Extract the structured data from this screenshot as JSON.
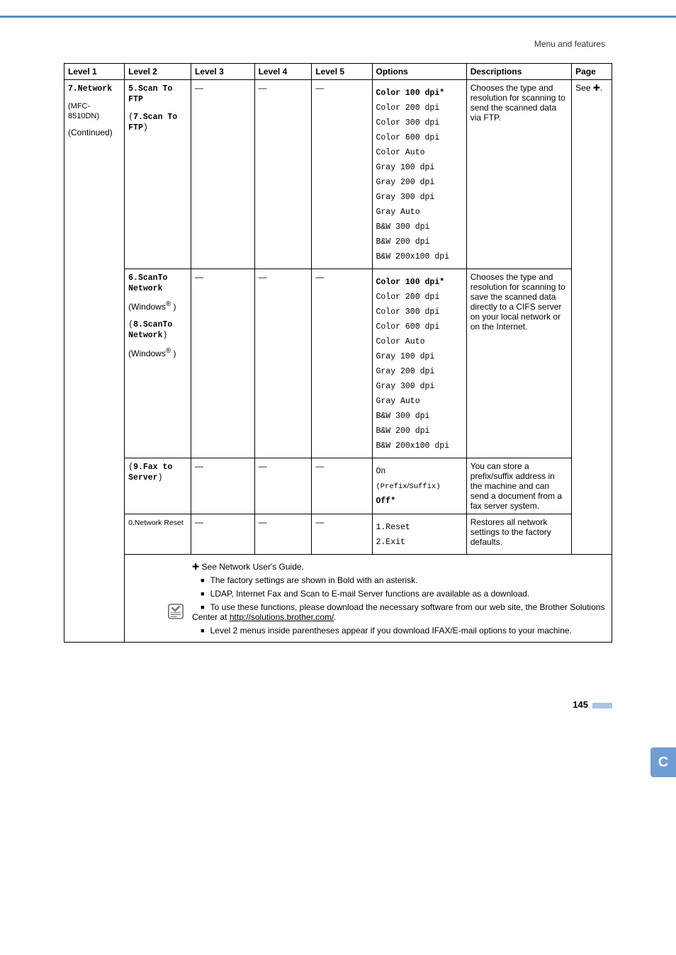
{
  "crumb": "Menu and features",
  "table": {
    "headers": [
      "Level 1",
      "Level 2",
      "Level 3",
      "Level 4",
      "Level 5",
      "Options",
      "Descriptions",
      "Page"
    ],
    "l1": {
      "code": "7.Network",
      "model": "(MFC-8510DN)",
      "cont": "(Continued)"
    },
    "page_ref": "See ✚.",
    "rows": [
      {
        "l2_html": "<div class='l2-block'><span class='l2-code'>5.Scan To FTP</span></div><div class='l2-block'><span class='l2-paren'>(</span><span class='l2-code'>7.Scan To FTP</span><span class='l2-paren'>)</span></div>",
        "l3": "—",
        "l4": "—",
        "l5": "—",
        "options": [
          "Color 100 dpi*",
          "Color 200 dpi",
          "Color 300 dpi",
          "Color 600 dpi",
          "Color Auto",
          "Gray 100 dpi",
          "Gray 200 dpi",
          "Gray 300 dpi",
          "Gray Auto",
          "B&W 300 dpi",
          "B&W 200 dpi",
          "B&W 200x100 dpi"
        ],
        "first_bold": true,
        "desc": "Chooses the type and resolution for scanning to send the scanned data via FTP."
      },
      {
        "l2_html": "<div class='l2-block'><span class='l2-code'>6.ScanTo Network</span></div><div class='l2-block'><span class='l2-sans'>(Windows<sup>®</sup> )</span></div><div class='l2-block'><span class='l2-paren'>(</span><span class='l2-code'>8.ScanTo Network</span><span class='l2-paren'>)</span></div><div class='l2-block'><span class='l2-sans'>(Windows<sup>®</sup> )</span></div>",
        "l3": "—",
        "l4": "—",
        "l5": "—",
        "options": [
          "Color 100 dpi*",
          "Color 200 dpi",
          "Color 300 dpi",
          "Color 600 dpi",
          "Color Auto",
          "Gray 100 dpi",
          "Gray 200 dpi",
          "Gray 300 dpi",
          "Gray Auto",
          "B&W 300 dpi",
          "B&W 200 dpi",
          "B&W 200x100 dpi"
        ],
        "first_bold": true,
        "desc": "Chooses the type and resolution for scanning to save the scanned data directly to a CIFS server on your local network or on the Internet."
      },
      {
        "l2_html": "<div class='l2-block'><span class='l2-paren'>(</span><span class='l2-code'>9.Fax to Server</span><span class='l2-paren'>)</span></div>",
        "l3": "—",
        "l4": "—",
        "l5": "—",
        "options_html": "<div class='opt'><span class='mono'>On</span></div><div class='opt'><span class='mono' style='font-size:10.5px'>(Prefix</span><span style='font-size:10.5px'>/</span><span class='mono' style='font-size:10.5px'>Suffix)</span></div><div class='opt'><span class='mono' style='font-weight:bold'>Off*</span></div>",
        "desc": "You can store a prefix/suffix address in the machine and can send a document from a fax server system."
      },
      {
        "l2_html": "<span class='l2-tiny'>0.Network Reset</span>",
        "l3": "—",
        "l4": "—",
        "l5": "—",
        "options_html": "<div class='opt'><span class='mono'>1.Reset</span></div><div class='opt'><span class='mono'>2.Exit</span></div>",
        "desc": "Restores all network settings to the factory defaults."
      }
    ],
    "footnotes": {
      "lead": "✚ See Network User's Guide.",
      "items": [
        "The factory settings are shown in Bold with an asterisk.",
        "LDAP, Internet Fax and Scan to E-mail Server functions are available as a download.",
        "To use these functions, please download the necessary software from our web site, the Brother Solutions Center at <a href='#'>http://solutions.brother.com/</a>.",
        "Level 2 menus inside parentheses appear if you download IFAX/E-mail options to your machine."
      ]
    }
  },
  "side_tab": "C",
  "page_number": "145"
}
